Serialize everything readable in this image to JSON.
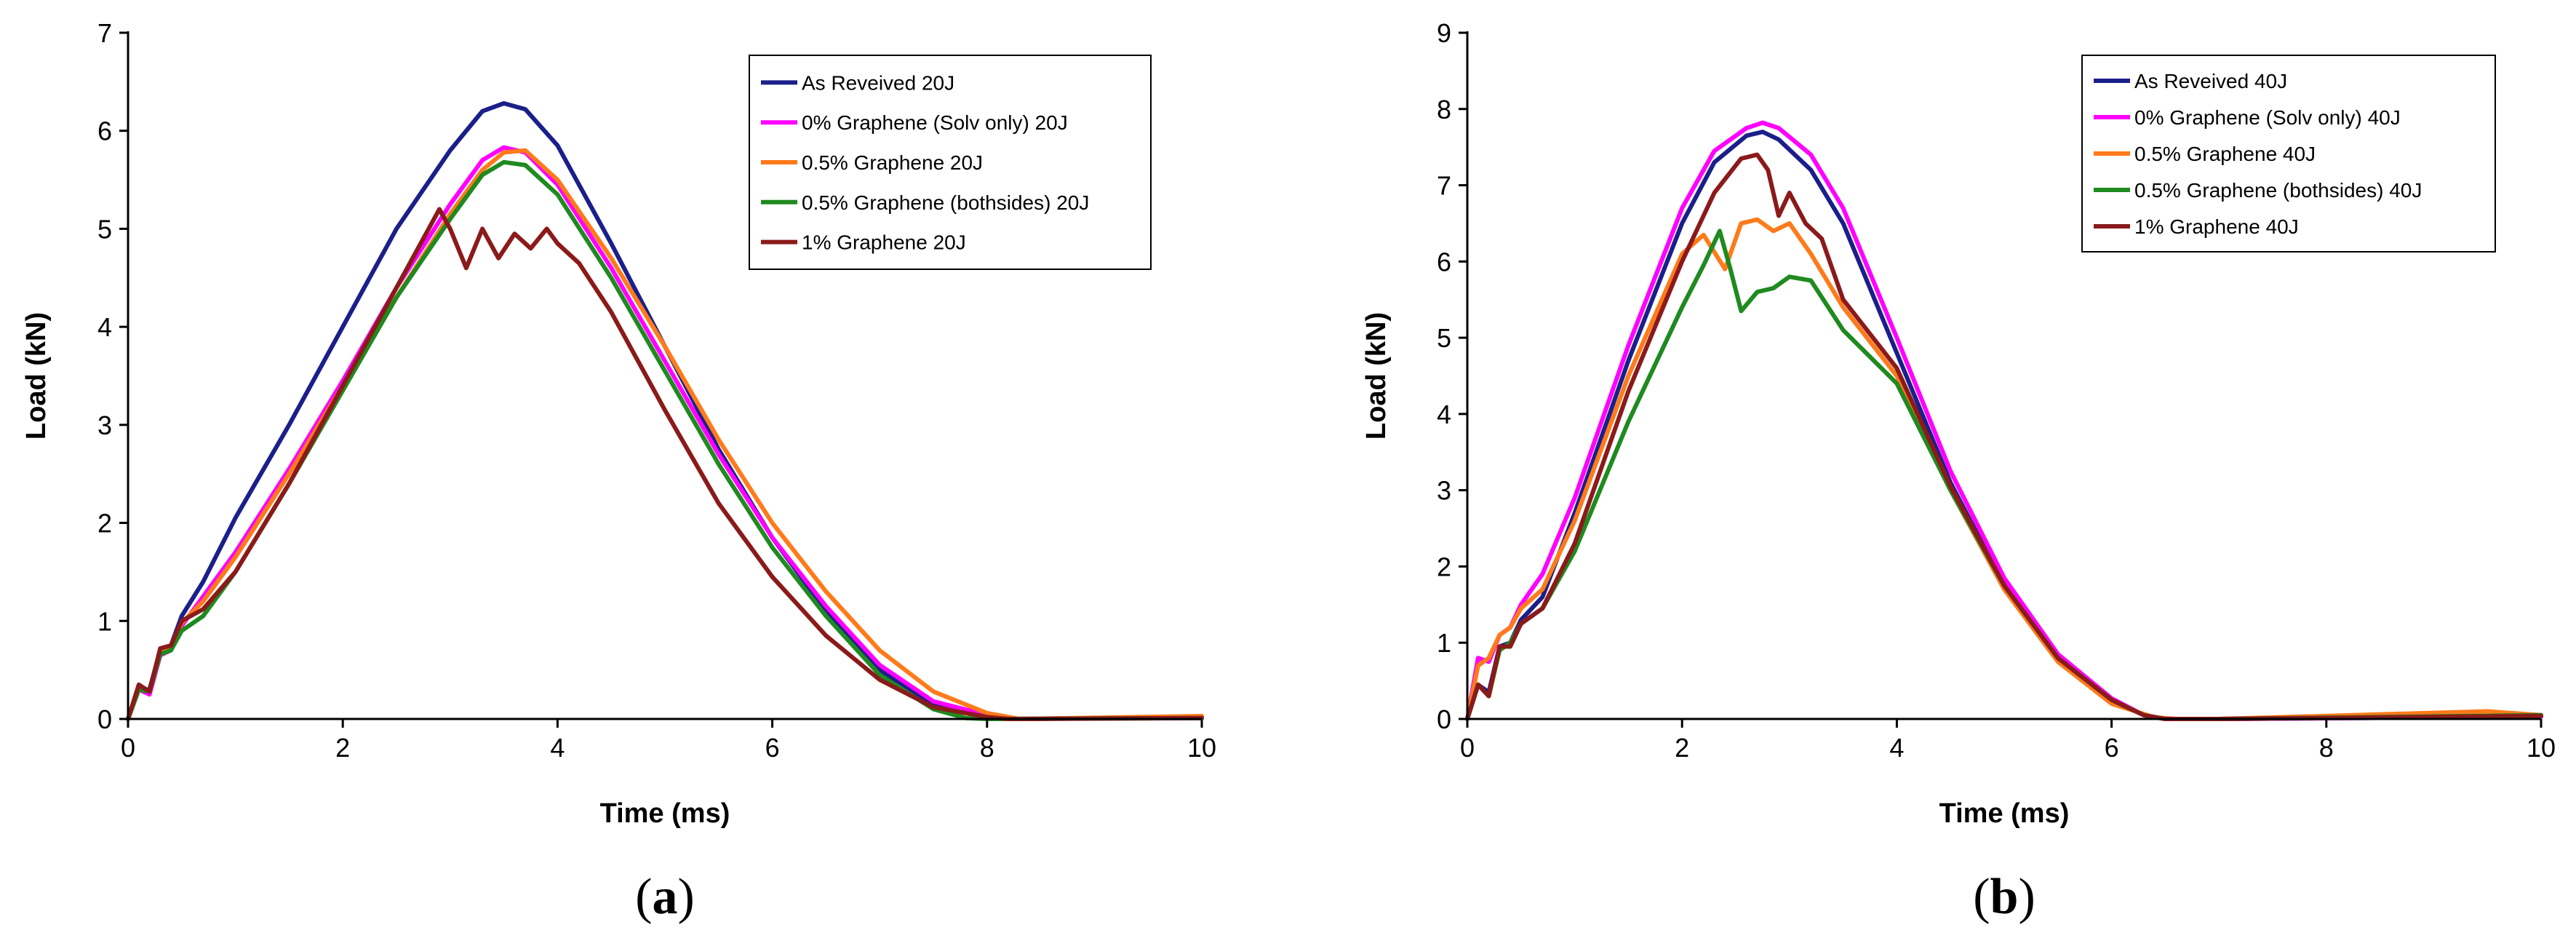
{
  "chart_data": [
    {
      "type": "line",
      "panel_label": "a",
      "title": "",
      "xlabel": "Time (ms)",
      "ylabel": "Load (kN)",
      "xlim": [
        0,
        10
      ],
      "ylim": [
        0,
        7
      ],
      "xticks": [
        0,
        2,
        4,
        6,
        8,
        10
      ],
      "yticks": [
        0,
        1,
        2,
        3,
        4,
        5,
        6,
        7
      ],
      "grid": false,
      "legend_position": "top-right",
      "series": [
        {
          "name": "As Reveived 20J",
          "color": "#1b1f8a",
          "x": [
            0,
            0.1,
            0.2,
            0.3,
            0.4,
            0.5,
            0.7,
            1.0,
            1.5,
            2.0,
            2.5,
            3.0,
            3.3,
            3.5,
            3.7,
            4.0,
            4.5,
            5.0,
            5.5,
            6.0,
            6.5,
            7.0,
            7.5,
            8.0,
            8.3,
            10
          ],
          "y": [
            0,
            0.3,
            0.3,
            0.7,
            0.75,
            1.05,
            1.4,
            2.05,
            3.0,
            4.0,
            5.0,
            5.8,
            6.2,
            6.28,
            6.22,
            5.85,
            4.85,
            3.8,
            2.75,
            1.85,
            1.1,
            0.5,
            0.15,
            0.03,
            0,
            0.02
          ]
        },
        {
          "name": "0% Graphene (Solv only) 20J",
          "color": "#ff00ff",
          "x": [
            0,
            0.1,
            0.2,
            0.3,
            0.4,
            0.5,
            0.7,
            1.0,
            1.5,
            2.0,
            2.5,
            3.0,
            3.3,
            3.5,
            3.7,
            4.0,
            4.5,
            5.0,
            5.5,
            6.0,
            6.5,
            7.0,
            7.5,
            8.0,
            8.3,
            10
          ],
          "y": [
            0,
            0.3,
            0.25,
            0.65,
            0.7,
            0.95,
            1.25,
            1.7,
            2.55,
            3.45,
            4.4,
            5.25,
            5.7,
            5.83,
            5.78,
            5.45,
            4.6,
            3.65,
            2.7,
            1.85,
            1.15,
            0.55,
            0.18,
            0.04,
            0,
            0.02
          ]
        },
        {
          "name": "0.5% Graphene 20J",
          "color": "#ff7a1a",
          "x": [
            0,
            0.1,
            0.2,
            0.3,
            0.4,
            0.5,
            0.7,
            1.0,
            1.5,
            2.0,
            2.5,
            3.0,
            3.3,
            3.5,
            3.7,
            4.0,
            4.5,
            5.0,
            5.5,
            6.0,
            6.5,
            7.0,
            7.5,
            8.0,
            8.3,
            10
          ],
          "y": [
            0,
            0.3,
            0.28,
            0.68,
            0.72,
            0.98,
            1.2,
            1.65,
            2.5,
            3.4,
            4.3,
            5.15,
            5.6,
            5.78,
            5.8,
            5.5,
            4.7,
            3.8,
            2.85,
            2.0,
            1.3,
            0.7,
            0.28,
            0.06,
            0,
            0.03
          ]
        },
        {
          "name": "0.5% Graphene (bothsides) 20J",
          "color": "#1f8a1f",
          "x": [
            0,
            0.1,
            0.2,
            0.3,
            0.4,
            0.5,
            0.7,
            1.0,
            1.5,
            2.0,
            2.5,
            3.0,
            3.3,
            3.5,
            3.7,
            4.0,
            4.5,
            5.0,
            5.5,
            6.0,
            6.5,
            7.0,
            7.5,
            7.8,
            8.0,
            10
          ],
          "y": [
            0,
            0.3,
            0.28,
            0.66,
            0.7,
            0.9,
            1.05,
            1.5,
            2.4,
            3.35,
            4.3,
            5.1,
            5.55,
            5.68,
            5.65,
            5.35,
            4.5,
            3.55,
            2.6,
            1.75,
            1.05,
            0.45,
            0.1,
            0.01,
            0,
            0.01
          ]
        },
        {
          "name": "1% Graphene 20J",
          "color": "#8b1a1a",
          "x": [
            0,
            0.1,
            0.2,
            0.3,
            0.4,
            0.5,
            0.7,
            1.0,
            1.5,
            2.0,
            2.5,
            2.9,
            3.0,
            3.15,
            3.3,
            3.45,
            3.6,
            3.75,
            3.9,
            4.0,
            4.2,
            4.5,
            5.0,
            5.5,
            6.0,
            6.5,
            7.0,
            7.5,
            8.0,
            8.2,
            10
          ],
          "y": [
            0,
            0.35,
            0.28,
            0.72,
            0.75,
            1.0,
            1.12,
            1.5,
            2.4,
            3.4,
            4.4,
            5.2,
            5.0,
            4.6,
            5.0,
            4.7,
            4.95,
            4.8,
            5.0,
            4.85,
            4.65,
            4.15,
            3.15,
            2.2,
            1.45,
            0.85,
            0.4,
            0.12,
            0.02,
            0,
            0.01
          ]
        }
      ]
    },
    {
      "type": "line",
      "panel_label": "b",
      "title": "",
      "xlabel": "Time (ms)",
      "ylabel": "Load (kN)",
      "xlim": [
        0,
        10
      ],
      "ylim": [
        0,
        9
      ],
      "xticks": [
        0,
        2,
        4,
        6,
        8,
        10
      ],
      "yticks": [
        0,
        1,
        2,
        3,
        4,
        5,
        6,
        7,
        8,
        9
      ],
      "grid": false,
      "legend_position": "top-right",
      "series": [
        {
          "name": "As Reveived 40J",
          "color": "#1b1f8a",
          "x": [
            0,
            0.1,
            0.2,
            0.3,
            0.4,
            0.5,
            0.7,
            1.0,
            1.5,
            2.0,
            2.3,
            2.6,
            2.75,
            2.9,
            3.2,
            3.5,
            4.0,
            4.5,
            5.0,
            5.5,
            6.0,
            6.3,
            6.5,
            7.0,
            10
          ],
          "y": [
            0,
            0.45,
            0.35,
            0.95,
            1.0,
            1.3,
            1.6,
            2.7,
            4.7,
            6.5,
            7.3,
            7.65,
            7.7,
            7.6,
            7.2,
            6.5,
            4.8,
            3.1,
            1.75,
            0.8,
            0.25,
            0.05,
            0,
            0,
            0.03
          ]
        },
        {
          "name": "0% Graphene (Solv only) 40J",
          "color": "#ff00ff",
          "x": [
            0,
            0.1,
            0.2,
            0.3,
            0.4,
            0.5,
            0.7,
            1.0,
            1.5,
            2.0,
            2.3,
            2.6,
            2.75,
            2.9,
            3.2,
            3.5,
            4.0,
            4.5,
            5.0,
            5.5,
            6.0,
            6.3,
            6.5,
            7.0,
            10
          ],
          "y": [
            0,
            0.8,
            0.75,
            1.1,
            1.2,
            1.5,
            1.9,
            2.9,
            4.9,
            6.7,
            7.45,
            7.75,
            7.82,
            7.75,
            7.4,
            6.7,
            5.0,
            3.25,
            1.85,
            0.85,
            0.27,
            0.05,
            0,
            0,
            0.03
          ]
        },
        {
          "name": "0.5% Graphene 40J",
          "color": "#ff7a1a",
          "x": [
            0,
            0.1,
            0.2,
            0.3,
            0.4,
            0.5,
            0.7,
            1.0,
            1.5,
            2.0,
            2.2,
            2.4,
            2.55,
            2.7,
            2.85,
            3.0,
            3.2,
            3.5,
            4.0,
            4.5,
            5.0,
            5.5,
            6.0,
            6.4,
            6.6,
            7.0,
            9.5,
            10
          ],
          "y": [
            0,
            0.7,
            0.8,
            1.1,
            1.2,
            1.45,
            1.7,
            2.6,
            4.5,
            6.1,
            6.35,
            5.9,
            6.5,
            6.55,
            6.4,
            6.5,
            6.1,
            5.4,
            4.5,
            3.0,
            1.7,
            0.75,
            0.2,
            0.02,
            0,
            0,
            0.1,
            0.05
          ]
        },
        {
          "name": "0.5% Graphene (bothsides) 40J",
          "color": "#1f8a1f",
          "x": [
            0,
            0.1,
            0.2,
            0.3,
            0.4,
            0.5,
            0.7,
            1.0,
            1.5,
            2.0,
            2.2,
            2.35,
            2.45,
            2.55,
            2.7,
            2.85,
            3.0,
            3.2,
            3.5,
            4.0,
            4.5,
            5.0,
            5.5,
            6.0,
            6.3,
            6.5,
            7.0,
            10
          ],
          "y": [
            0,
            0.45,
            0.3,
            0.9,
            1.0,
            1.25,
            1.45,
            2.2,
            3.9,
            5.4,
            5.95,
            6.4,
            5.9,
            5.35,
            5.6,
            5.65,
            5.8,
            5.75,
            5.1,
            4.4,
            3.0,
            1.75,
            0.8,
            0.25,
            0.05,
            0,
            0,
            0.05
          ]
        },
        {
          "name": "1% Graphene 40J",
          "color": "#8b1a1a",
          "x": [
            0,
            0.1,
            0.2,
            0.3,
            0.4,
            0.5,
            0.7,
            1.0,
            1.5,
            2.0,
            2.3,
            2.55,
            2.7,
            2.8,
            2.9,
            3.0,
            3.15,
            3.3,
            3.5,
            4.0,
            4.5,
            5.0,
            5.5,
            6.0,
            6.3,
            6.5,
            7.0,
            10
          ],
          "y": [
            0,
            0.45,
            0.3,
            0.95,
            0.95,
            1.25,
            1.45,
            2.3,
            4.3,
            6.0,
            6.9,
            7.35,
            7.4,
            7.2,
            6.6,
            6.9,
            6.5,
            6.3,
            5.5,
            4.6,
            3.05,
            1.75,
            0.8,
            0.25,
            0.05,
            0,
            0,
            0.04
          ]
        }
      ]
    }
  ]
}
